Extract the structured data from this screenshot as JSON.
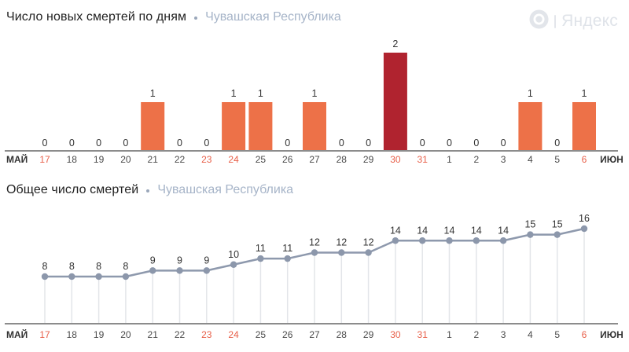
{
  "logo": {
    "icon": "yandex-roundel-icon",
    "text": "Яндекс"
  },
  "chart_data": [
    {
      "type": "bar",
      "title": "Число новых смертей по дням",
      "region": "Чувашская Республика",
      "axis_start_label": "МАЙ",
      "axis_end_label": "ИЮН",
      "categories": [
        "17",
        "18",
        "19",
        "20",
        "21",
        "22",
        "23",
        "24",
        "25",
        "26",
        "27",
        "28",
        "29",
        "30",
        "31",
        "1",
        "2",
        "3",
        "4",
        "5",
        "6"
      ],
      "values": [
        0,
        0,
        0,
        0,
        1,
        0,
        0,
        1,
        1,
        0,
        1,
        0,
        0,
        2,
        0,
        0,
        0,
        0,
        1,
        0,
        1
      ],
      "weekend_indices": [
        0,
        6,
        7,
        13,
        14,
        20
      ],
      "highlight_index": 13,
      "ylim": [
        0,
        2
      ],
      "grid": false,
      "legend": false,
      "colors": {
        "bar": "#ed7148",
        "highlight_bar": "#b0232f",
        "axis": "#8c8c8c",
        "value_label": "#333333",
        "date_label": "#4a4a4a",
        "weekend_date_label": "#e8604a"
      }
    },
    {
      "type": "line",
      "title": "Общее число смертей",
      "region": "Чувашская Республика",
      "axis_start_label": "МАЙ",
      "axis_end_label": "ИЮН",
      "categories": [
        "17",
        "18",
        "19",
        "20",
        "21",
        "22",
        "23",
        "24",
        "25",
        "26",
        "27",
        "28",
        "29",
        "30",
        "31",
        "1",
        "2",
        "3",
        "4",
        "5",
        "6"
      ],
      "values": [
        8,
        8,
        8,
        8,
        9,
        9,
        9,
        10,
        11,
        11,
        12,
        12,
        12,
        14,
        14,
        14,
        14,
        14,
        15,
        15,
        16
      ],
      "weekend_indices": [
        0,
        6,
        7,
        13,
        14,
        20
      ],
      "ylim": [
        0,
        16
      ],
      "grid": false,
      "legend": false,
      "colors": {
        "line": "#8e99ad",
        "point": "#8c97ab",
        "drop_line": "#e3e5e9",
        "axis": "#8c8c8c",
        "value_label": "#333333",
        "date_label": "#4a4a4a",
        "weekend_date_label": "#e8604a"
      }
    }
  ]
}
